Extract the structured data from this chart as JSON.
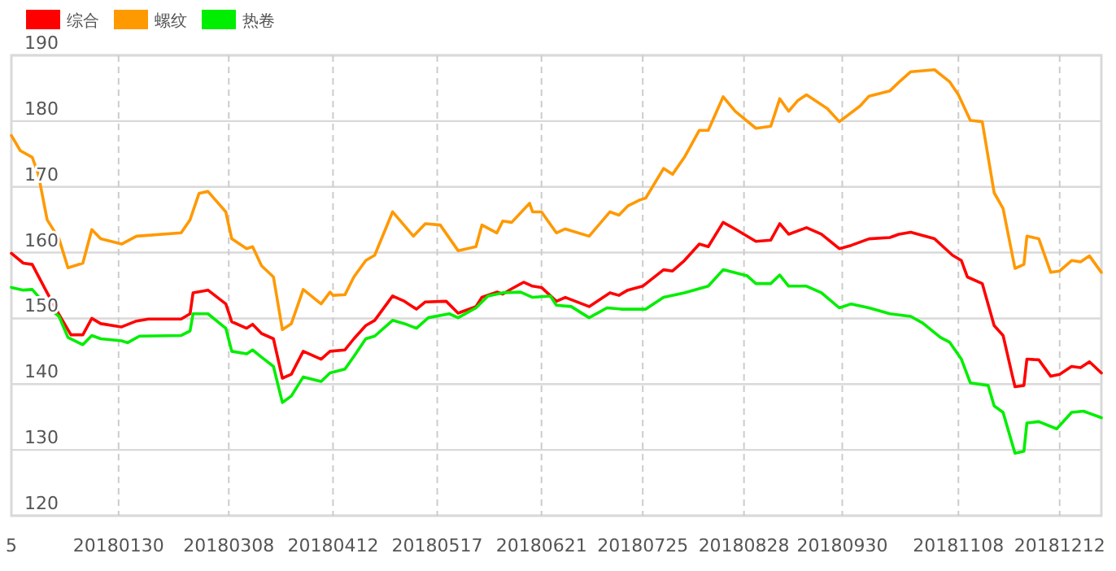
{
  "chart_data": {
    "type": "line",
    "legend": "top left",
    "grid": true,
    "marker": "none",
    "line_style": "solid",
    "xlim": [
      "2017-12-25",
      "2018-12-26"
    ],
    "ylim": [
      120,
      190
    ],
    "xticks": [
      {
        "value": "2017-12-25",
        "label": "5"
      },
      {
        "value": "2018-01-30",
        "label": "20180130"
      },
      {
        "value": "2018-03-08",
        "label": "20180308"
      },
      {
        "value": "2018-04-12",
        "label": "20180412"
      },
      {
        "value": "2018-05-17",
        "label": "20180517"
      },
      {
        "value": "2018-06-21",
        "label": "20180621"
      },
      {
        "value": "2018-07-25",
        "label": "20180725"
      },
      {
        "value": "2018-08-28",
        "label": "20180828"
      },
      {
        "value": "2018-09-30",
        "label": "20180930"
      },
      {
        "value": "2018-11-08",
        "label": "20181108"
      },
      {
        "value": "2018-12-12",
        "label": "20181212"
      }
    ],
    "yticks": [
      120,
      130,
      140,
      150,
      160,
      170,
      180,
      190
    ],
    "series": [
      {
        "name": "综合",
        "color": "#ff0000",
        "x": [
          "2017-12-25",
          "2017-12-29",
          "2018-01-01",
          "2018-01-06",
          "2018-01-10",
          "2018-01-14",
          "2018-01-18",
          "2018-01-21",
          "2018-01-24",
          "2018-01-31",
          "2018-02-05",
          "2018-02-09",
          "2018-02-20",
          "2018-02-23",
          "2018-02-24",
          "2018-03-01",
          "2018-03-07",
          "2018-03-09",
          "2018-03-14",
          "2018-03-16",
          "2018-03-19",
          "2018-03-23",
          "2018-03-26",
          "2018-03-29",
          "2018-04-02",
          "2018-04-08",
          "2018-04-11",
          "2018-04-16",
          "2018-04-19",
          "2018-04-23",
          "2018-04-26",
          "2018-05-02",
          "2018-05-06",
          "2018-05-10",
          "2018-05-13",
          "2018-05-20",
          "2018-05-24",
          "2018-05-30",
          "2018-06-01",
          "2018-06-06",
          "2018-06-08",
          "2018-06-11",
          "2018-06-15",
          "2018-06-18",
          "2018-06-21",
          "2018-06-26",
          "2018-06-29",
          "2018-07-07",
          "2018-07-14",
          "2018-07-17",
          "2018-07-20",
          "2018-07-25",
          "2018-08-01",
          "2018-08-04",
          "2018-08-08",
          "2018-08-13",
          "2018-08-16",
          "2018-08-21",
          "2018-08-25",
          "2018-09-01",
          "2018-09-06",
          "2018-09-09",
          "2018-09-12",
          "2018-09-18",
          "2018-09-23",
          "2018-09-29",
          "2018-10-03",
          "2018-10-09",
          "2018-10-16",
          "2018-10-19",
          "2018-10-23",
          "2018-10-31",
          "2018-11-06",
          "2018-11-09",
          "2018-11-11",
          "2018-11-16",
          "2018-11-20",
          "2018-11-23",
          "2018-11-26",
          "2018-11-27",
          "2018-11-30",
          "2018-12-01",
          "2018-12-05",
          "2018-12-09",
          "2018-12-12",
          "2018-12-16",
          "2018-12-19",
          "2018-12-22",
          "2018-12-26"
        ],
        "values": [
          159.9,
          158.4,
          158.2,
          153.9,
          150.6,
          147.5,
          147.5,
          150,
          149.2,
          148.7,
          149.6,
          149.9,
          149.9,
          150.7,
          153.9,
          154.3,
          152.2,
          149.5,
          148.5,
          149.1,
          147.7,
          146.9,
          140.9,
          141.5,
          145,
          143.8,
          145,
          145.2,
          146.9,
          148.9,
          149.7,
          153.4,
          152.6,
          151.4,
          152.5,
          152.6,
          150.8,
          151.8,
          153.2,
          154,
          153.7,
          154.5,
          155.5,
          154.9,
          154.7,
          152.6,
          153.2,
          151.8,
          153.9,
          153.5,
          154.3,
          154.9,
          157.4,
          157.2,
          158.8,
          161.3,
          160.9,
          164.6,
          163.6,
          161.7,
          161.9,
          164.4,
          162.8,
          163.8,
          162.8,
          160.6,
          161.1,
          162.1,
          162.3,
          162.8,
          163.1,
          162.1,
          159.6,
          158.8,
          156.3,
          155.3,
          148.9,
          147.4,
          141.5,
          139.6,
          139.8,
          143.8,
          143.7,
          141.2,
          141.5,
          142.7,
          142.5,
          143.4,
          141.7
        ]
      },
      {
        "name": "螺纹",
        "color": "#ff9900",
        "x": [
          "2017-12-25",
          "2017-12-28",
          "2018-01-01",
          "2018-01-03",
          "2018-01-06",
          "2018-01-10",
          "2018-01-13",
          "2018-01-18",
          "2018-01-21",
          "2018-01-24",
          "2018-01-31",
          "2018-02-05",
          "2018-02-20",
          "2018-02-23",
          "2018-02-26",
          "2018-03-01",
          "2018-03-07",
          "2018-03-09",
          "2018-03-14",
          "2018-03-16",
          "2018-03-19",
          "2018-03-23",
          "2018-03-26",
          "2018-03-29",
          "2018-04-02",
          "2018-04-08",
          "2018-04-11",
          "2018-04-12",
          "2018-04-16",
          "2018-04-19",
          "2018-04-23",
          "2018-04-26",
          "2018-05-02",
          "2018-05-09",
          "2018-05-13",
          "2018-05-18",
          "2018-05-24",
          "2018-05-30",
          "2018-06-01",
          "2018-06-06",
          "2018-06-08",
          "2018-06-11",
          "2018-06-17",
          "2018-06-18",
          "2018-06-21",
          "2018-06-26",
          "2018-06-29",
          "2018-07-07",
          "2018-07-14",
          "2018-07-17",
          "2018-07-20",
          "2018-07-24",
          "2018-07-26",
          "2018-08-01",
          "2018-08-04",
          "2018-08-08",
          "2018-08-13",
          "2018-08-16",
          "2018-08-21",
          "2018-08-25",
          "2018-09-01",
          "2018-09-06",
          "2018-09-09",
          "2018-09-12",
          "2018-09-15",
          "2018-09-18",
          "2018-09-25",
          "2018-09-29",
          "2018-10-06",
          "2018-10-09",
          "2018-10-16",
          "2018-10-19",
          "2018-10-23",
          "2018-10-31",
          "2018-11-05",
          "2018-11-08",
          "2018-11-12",
          "2018-11-16",
          "2018-11-20",
          "2018-11-23",
          "2018-11-27",
          "2018-11-30",
          "2018-12-01",
          "2018-12-05",
          "2018-12-09",
          "2018-12-12",
          "2018-12-16",
          "2018-12-19",
          "2018-12-22",
          "2018-12-26"
        ],
        "values": [
          177.8,
          175.5,
          174.5,
          172,
          165,
          162.1,
          157.7,
          158.4,
          163.5,
          162.1,
          161.3,
          162.5,
          163,
          165,
          169,
          169.3,
          166.2,
          162.1,
          160.6,
          160.9,
          158,
          156.3,
          148.3,
          149.2,
          154.4,
          152.2,
          154,
          153.5,
          153.6,
          156.3,
          158.8,
          159.6,
          166.2,
          162.5,
          164.4,
          164.2,
          160.3,
          160.9,
          164.2,
          163,
          164.8,
          164.6,
          167.5,
          166.2,
          166.2,
          163,
          163.6,
          162.5,
          166.2,
          165.7,
          167.1,
          168,
          168.3,
          172.8,
          171.9,
          174.5,
          178.6,
          178.6,
          183.7,
          181.5,
          178.9,
          179.2,
          183.4,
          181.5,
          183.1,
          184,
          181.9,
          179.9,
          182.3,
          183.8,
          184.6,
          185.9,
          187.5,
          187.8,
          186,
          184,
          180.1,
          179.9,
          169.1,
          166.7,
          157.6,
          158.2,
          162.5,
          162.1,
          157,
          157.2,
          158.8,
          158.6,
          159.5,
          157
        ]
      },
      {
        "name": "热卷",
        "color": "#00ee00",
        "x": [
          "2017-12-25",
          "2017-12-29",
          "2018-01-01",
          "2018-01-06",
          "2018-01-10",
          "2018-01-13",
          "2018-01-18",
          "2018-01-21",
          "2018-01-24",
          "2018-01-31",
          "2018-02-02",
          "2018-02-06",
          "2018-02-20",
          "2018-02-23",
          "2018-02-24",
          "2018-03-01",
          "2018-03-07",
          "2018-03-09",
          "2018-03-14",
          "2018-03-16",
          "2018-03-19",
          "2018-03-23",
          "2018-03-26",
          "2018-03-29",
          "2018-04-02",
          "2018-04-08",
          "2018-04-11",
          "2018-04-16",
          "2018-04-19",
          "2018-04-23",
          "2018-04-26",
          "2018-05-02",
          "2018-05-06",
          "2018-05-10",
          "2018-05-14",
          "2018-05-21",
          "2018-05-24",
          "2018-05-30",
          "2018-06-03",
          "2018-06-08",
          "2018-06-14",
          "2018-06-18",
          "2018-06-24",
          "2018-06-26",
          "2018-07-01",
          "2018-07-07",
          "2018-07-13",
          "2018-07-18",
          "2018-07-26",
          "2018-08-01",
          "2018-08-08",
          "2018-08-16",
          "2018-08-21",
          "2018-08-29",
          "2018-09-01",
          "2018-09-06",
          "2018-09-09",
          "2018-09-12",
          "2018-09-18",
          "2018-09-23",
          "2018-09-29",
          "2018-10-03",
          "2018-10-09",
          "2018-10-16",
          "2018-10-23",
          "2018-10-27",
          "2018-11-02",
          "2018-11-05",
          "2018-11-09",
          "2018-11-12",
          "2018-11-18",
          "2018-11-20",
          "2018-11-23",
          "2018-11-27",
          "2018-11-30",
          "2018-12-01",
          "2018-12-05",
          "2018-12-11",
          "2018-12-16",
          "2018-12-20",
          "2018-12-26"
        ],
        "values": [
          154.7,
          154.3,
          154.4,
          151.8,
          150.3,
          147.1,
          146,
          147.4,
          146.9,
          146.6,
          146.3,
          147.3,
          147.4,
          148.1,
          150.7,
          150.7,
          148.5,
          145,
          144.6,
          145.2,
          144.1,
          142.7,
          137.2,
          138.2,
          141.1,
          140.4,
          141.7,
          142.3,
          144.2,
          146.9,
          147.3,
          149.7,
          149.2,
          148.5,
          150.1,
          150.7,
          150.1,
          151.6,
          153.4,
          153.9,
          154,
          153.2,
          153.4,
          152,
          151.8,
          150.1,
          151.6,
          151.4,
          151.4,
          153.2,
          153.9,
          154.9,
          157.4,
          156.5,
          155.3,
          155.3,
          156.6,
          154.9,
          154.9,
          153.9,
          151.6,
          152.2,
          151.6,
          150.7,
          150.3,
          149.3,
          147.1,
          146.4,
          143.8,
          140.2,
          139.8,
          136.7,
          135.7,
          129.5,
          129.8,
          134.1,
          134.3,
          133.2,
          135.7,
          135.9,
          134.9
        ]
      }
    ]
  }
}
